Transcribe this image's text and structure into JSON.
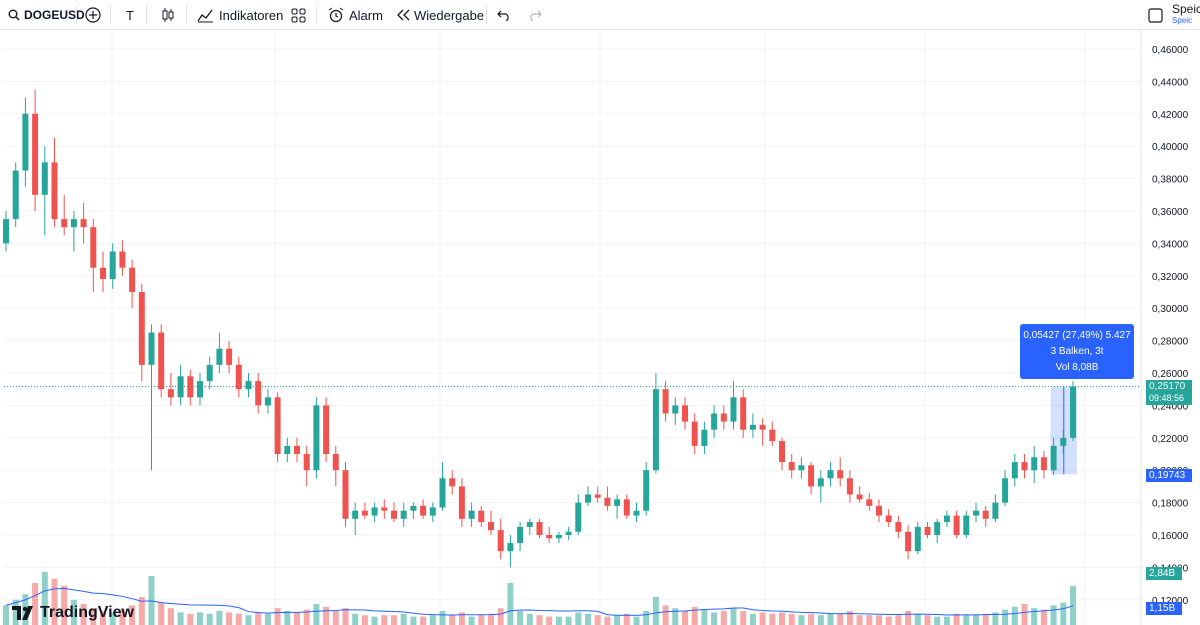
{
  "toolbar": {
    "symbol": "DOGEUSD",
    "text_tool": "T",
    "indicators": "Indikatoren",
    "alarm": "Alarm",
    "replay": "Wiedergabe",
    "save": "Speic",
    "save_sub": "Speic"
  },
  "price_axis": {
    "ticks": [
      "0,46000",
      "0,44000",
      "0,42000",
      "0,40000",
      "0,38000",
      "0,36000",
      "0,34000",
      "0,32000",
      "0,30000",
      "0,28000",
      "0,26000",
      "0,24000",
      "0,22000",
      "0,20000",
      "0,18000",
      "0,16000",
      "0,14000",
      "0,12000"
    ],
    "last_price": "0,25170",
    "countdown": "09:48:56",
    "measure_low": "0,19743",
    "volume_tag": "2,84B",
    "volume_ma_tag": "1,15B"
  },
  "measure": {
    "line1": "0,05427 (27,49%) 5.427",
    "line2": "3 Balken, 3t",
    "line3": "Vol 8,08B"
  },
  "branding": {
    "logo": "TradingView"
  },
  "colors": {
    "up": "#26a69a",
    "down": "#ef5350",
    "volume_ma": "#2962ff",
    "measure": "#2962ff"
  },
  "chart_data": {
    "type": "candlestick",
    "symbol": "DOGEUSD",
    "y_range": [
      0.12,
      0.46
    ],
    "last_price": 0.2517,
    "volume_last": "2,84B",
    "volume_ma_last": "1,15B",
    "ohlc": [
      [
        0.34,
        0.36,
        0.335,
        0.355
      ],
      [
        0.355,
        0.39,
        0.35,
        0.385
      ],
      [
        0.385,
        0.43,
        0.375,
        0.42
      ],
      [
        0.42,
        0.435,
        0.36,
        0.37
      ],
      [
        0.37,
        0.4,
        0.345,
        0.39
      ],
      [
        0.39,
        0.405,
        0.35,
        0.355
      ],
      [
        0.355,
        0.37,
        0.345,
        0.35
      ],
      [
        0.35,
        0.36,
        0.335,
        0.355
      ],
      [
        0.355,
        0.365,
        0.34,
        0.35
      ],
      [
        0.35,
        0.355,
        0.31,
        0.325
      ],
      [
        0.325,
        0.335,
        0.31,
        0.318
      ],
      [
        0.318,
        0.34,
        0.312,
        0.335
      ],
      [
        0.335,
        0.342,
        0.32,
        0.325
      ],
      [
        0.325,
        0.33,
        0.3,
        0.31
      ],
      [
        0.31,
        0.315,
        0.255,
        0.265
      ],
      [
        0.265,
        0.29,
        0.2,
        0.285
      ],
      [
        0.285,
        0.29,
        0.245,
        0.25
      ],
      [
        0.25,
        0.26,
        0.24,
        0.245
      ],
      [
        0.245,
        0.265,
        0.24,
        0.258
      ],
      [
        0.258,
        0.262,
        0.24,
        0.245
      ],
      [
        0.245,
        0.26,
        0.24,
        0.255
      ],
      [
        0.255,
        0.27,
        0.25,
        0.265
      ],
      [
        0.265,
        0.285,
        0.26,
        0.275
      ],
      [
        0.275,
        0.28,
        0.26,
        0.265
      ],
      [
        0.265,
        0.27,
        0.245,
        0.25
      ],
      [
        0.25,
        0.26,
        0.245,
        0.255
      ],
      [
        0.255,
        0.26,
        0.235,
        0.24
      ],
      [
        0.24,
        0.25,
        0.235,
        0.245
      ],
      [
        0.245,
        0.248,
        0.205,
        0.21
      ],
      [
        0.21,
        0.22,
        0.205,
        0.215
      ],
      [
        0.215,
        0.22,
        0.205,
        0.21
      ],
      [
        0.21,
        0.215,
        0.19,
        0.2
      ],
      [
        0.2,
        0.245,
        0.195,
        0.24
      ],
      [
        0.24,
        0.245,
        0.205,
        0.21
      ],
      [
        0.21,
        0.215,
        0.19,
        0.2
      ],
      [
        0.2,
        0.205,
        0.165,
        0.17
      ],
      [
        0.17,
        0.18,
        0.16,
        0.175
      ],
      [
        0.175,
        0.18,
        0.17,
        0.172
      ],
      [
        0.172,
        0.18,
        0.168,
        0.177
      ],
      [
        0.177,
        0.182,
        0.17,
        0.175
      ],
      [
        0.175,
        0.18,
        0.168,
        0.17
      ],
      [
        0.17,
        0.18,
        0.165,
        0.175
      ],
      [
        0.175,
        0.18,
        0.17,
        0.178
      ],
      [
        0.178,
        0.182,
        0.17,
        0.172
      ],
      [
        0.172,
        0.18,
        0.168,
        0.177
      ],
      [
        0.177,
        0.205,
        0.175,
        0.195
      ],
      [
        0.195,
        0.2,
        0.185,
        0.19
      ],
      [
        0.19,
        0.195,
        0.165,
        0.17
      ],
      [
        0.17,
        0.18,
        0.165,
        0.175
      ],
      [
        0.175,
        0.178,
        0.165,
        0.168
      ],
      [
        0.168,
        0.175,
        0.16,
        0.163
      ],
      [
        0.163,
        0.17,
        0.145,
        0.15
      ],
      [
        0.15,
        0.16,
        0.14,
        0.155
      ],
      [
        0.155,
        0.168,
        0.15,
        0.165
      ],
      [
        0.165,
        0.17,
        0.16,
        0.168
      ],
      [
        0.168,
        0.17,
        0.158,
        0.16
      ],
      [
        0.16,
        0.165,
        0.155,
        0.158
      ],
      [
        0.158,
        0.162,
        0.155,
        0.16
      ],
      [
        0.16,
        0.165,
        0.157,
        0.162
      ],
      [
        0.162,
        0.185,
        0.16,
        0.18
      ],
      [
        0.18,
        0.19,
        0.178,
        0.185
      ],
      [
        0.185,
        0.19,
        0.18,
        0.183
      ],
      [
        0.183,
        0.19,
        0.175,
        0.178
      ],
      [
        0.178,
        0.185,
        0.17,
        0.182
      ],
      [
        0.182,
        0.185,
        0.17,
        0.172
      ],
      [
        0.172,
        0.18,
        0.168,
        0.175
      ],
      [
        0.175,
        0.205,
        0.172,
        0.2
      ],
      [
        0.2,
        0.26,
        0.198,
        0.25
      ],
      [
        0.25,
        0.255,
        0.23,
        0.235
      ],
      [
        0.235,
        0.245,
        0.228,
        0.24
      ],
      [
        0.24,
        0.245,
        0.225,
        0.23
      ],
      [
        0.23,
        0.235,
        0.21,
        0.215
      ],
      [
        0.215,
        0.23,
        0.21,
        0.225
      ],
      [
        0.225,
        0.24,
        0.22,
        0.235
      ],
      [
        0.235,
        0.24,
        0.225,
        0.23
      ],
      [
        0.23,
        0.255,
        0.225,
        0.245
      ],
      [
        0.245,
        0.25,
        0.22,
        0.225
      ],
      [
        0.225,
        0.235,
        0.22,
        0.228
      ],
      [
        0.228,
        0.232,
        0.215,
        0.225
      ],
      [
        0.225,
        0.23,
        0.215,
        0.218
      ],
      [
        0.218,
        0.22,
        0.2,
        0.205
      ],
      [
        0.205,
        0.21,
        0.195,
        0.2
      ],
      [
        0.2,
        0.208,
        0.195,
        0.203
      ],
      [
        0.203,
        0.205,
        0.185,
        0.19
      ],
      [
        0.19,
        0.2,
        0.18,
        0.195
      ],
      [
        0.195,
        0.205,
        0.19,
        0.2
      ],
      [
        0.2,
        0.208,
        0.19,
        0.195
      ],
      [
        0.195,
        0.2,
        0.18,
        0.185
      ],
      [
        0.185,
        0.19,
        0.18,
        0.182
      ],
      [
        0.182,
        0.186,
        0.175,
        0.178
      ],
      [
        0.178,
        0.182,
        0.168,
        0.172
      ],
      [
        0.172,
        0.176,
        0.165,
        0.168
      ],
      [
        0.168,
        0.172,
        0.158,
        0.162
      ],
      [
        0.162,
        0.166,
        0.145,
        0.15
      ],
      [
        0.15,
        0.168,
        0.148,
        0.165
      ],
      [
        0.165,
        0.168,
        0.158,
        0.16
      ],
      [
        0.16,
        0.17,
        0.155,
        0.168
      ],
      [
        0.168,
        0.175,
        0.165,
        0.172
      ],
      [
        0.172,
        0.175,
        0.158,
        0.16
      ],
      [
        0.16,
        0.175,
        0.158,
        0.172
      ],
      [
        0.172,
        0.18,
        0.168,
        0.175
      ],
      [
        0.175,
        0.178,
        0.165,
        0.17
      ],
      [
        0.17,
        0.185,
        0.168,
        0.18
      ],
      [
        0.18,
        0.2,
        0.178,
        0.195
      ],
      [
        0.195,
        0.21,
        0.19,
        0.205
      ],
      [
        0.205,
        0.21,
        0.195,
        0.2
      ],
      [
        0.2,
        0.215,
        0.192,
        0.208
      ],
      [
        0.208,
        0.212,
        0.195,
        0.2
      ],
      [
        0.2,
        0.22,
        0.197,
        0.215
      ],
      [
        0.215,
        0.225,
        0.21,
        0.22
      ],
      [
        0.22,
        0.255,
        0.218,
        0.2517
      ]
    ],
    "volume_pct": [
      14,
      18,
      22,
      30,
      38,
      33,
      28,
      18,
      15,
      12,
      10,
      9,
      11,
      14,
      20,
      35,
      16,
      12,
      9,
      8,
      9,
      8,
      10,
      9,
      8,
      7,
      9,
      8,
      12,
      10,
      9,
      11,
      15,
      13,
      10,
      12,
      8,
      7,
      6,
      7,
      7,
      8,
      6,
      6,
      7,
      10,
      7,
      9,
      6,
      7,
      8,
      12,
      30,
      10,
      8,
      7,
      6,
      6,
      6,
      9,
      8,
      7,
      6,
      7,
      8,
      6,
      10,
      20,
      14,
      12,
      10,
      13,
      11,
      9,
      10,
      12,
      10,
      8,
      9,
      8,
      9,
      8,
      7,
      8,
      7,
      8,
      8,
      10,
      7,
      7,
      7,
      6,
      7,
      10,
      8,
      7,
      6,
      6,
      8,
      7,
      7,
      8,
      9,
      11,
      13,
      15,
      12,
      11,
      14,
      16,
      28
    ],
    "measure_range": {
      "from": 0.19743,
      "to": 0.2517,
      "change": "0,05427 (27,49%) 5.427",
      "bars": "3 Balken, 3t",
      "volume": "Vol 8,08B"
    }
  }
}
